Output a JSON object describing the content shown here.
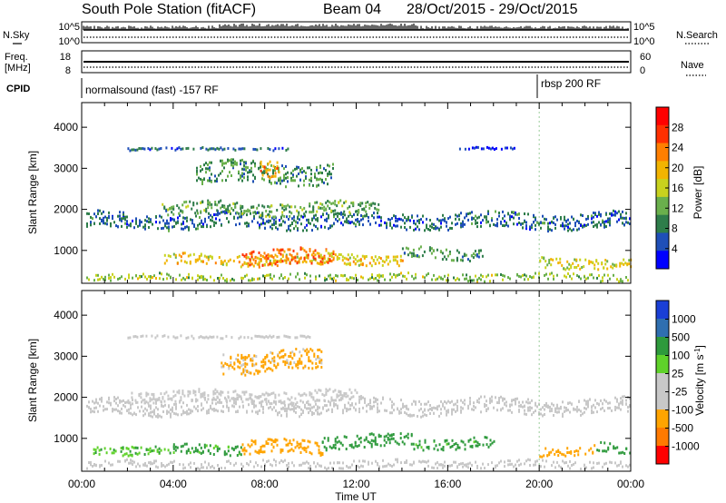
{
  "header": {
    "station": "South Pole Station (fitACF)",
    "beam": "Beam 04",
    "dates": "28/Oct/2015 - 29/Oct/2015"
  },
  "top_panels": {
    "nsky_label": "N.Sky",
    "nsky_ticks": [
      "10^5",
      "10^0"
    ],
    "nsearch_label": "N.Search",
    "nsearch_ticks": [
      "10^5",
      "10^0"
    ],
    "freq_label_line1": "Freq.",
    "freq_label_line2": "[MHz]",
    "freq_ticks": [
      "18",
      "8"
    ],
    "nave_label": "Nave",
    "nave_ticks": [
      "60",
      "0"
    ],
    "cpid_label": "CPID",
    "cpid_segments": [
      {
        "label": "normalsound (fast) -157 RF",
        "start_hr": 0,
        "end_hr": 20.0
      },
      {
        "label": "rbsp 200 RF",
        "start_hr": 20.0,
        "end_hr": 24
      }
    ]
  },
  "colors": {
    "power_scale": [
      "#0000ff",
      "#1f4fb8",
      "#2e7d4a",
      "#6ab04c",
      "#c8d21e",
      "#f2b400",
      "#ff7f00",
      "#ff3000",
      "#ff0000"
    ],
    "velocity_scale": [
      "#ff0000",
      "#ff7a00",
      "#ffa400",
      "#c8c8c8",
      "#c8c8c8",
      "#5fd22a",
      "#2e9a3c",
      "#2f6fb0",
      "#1a3fd6"
    ]
  },
  "chart_data": [
    {
      "type": "heatmap",
      "name": "power",
      "x_label": "Time UT",
      "y_label": "Slant Range [km]",
      "xlim": [
        0,
        24
      ],
      "ylim": [
        200,
        4600
      ],
      "x_ticks": [
        "00:00",
        "04:00",
        "08:00",
        "12:00",
        "16:00",
        "20:00",
        "00:00"
      ],
      "y_ticks": [
        1000,
        2000,
        3000,
        4000
      ],
      "colorbar": {
        "label": "Power [dB]",
        "ticks": [
          "4",
          "8",
          "12",
          "16",
          "20",
          "24",
          "28"
        ],
        "range": [
          0,
          32
        ]
      },
      "bands": [
        {
          "t_start": 0.2,
          "t_end": 24,
          "range_center": 1750,
          "range_width": 380,
          "value": 7
        },
        {
          "t_start": 3.5,
          "t_end": 13,
          "range_center": 2050,
          "range_width": 300,
          "value": 11
        },
        {
          "t_start": 3.6,
          "t_end": 14,
          "range_center": 800,
          "range_width": 260,
          "value": 18
        },
        {
          "t_start": 7,
          "t_end": 11,
          "range_center": 850,
          "range_width": 380,
          "value": 24
        },
        {
          "t_start": 14,
          "t_end": 17.5,
          "range_center": 950,
          "range_width": 280,
          "value": 10
        },
        {
          "t_start": 20,
          "t_end": 24,
          "range_center": 720,
          "range_width": 260,
          "value": 16
        },
        {
          "t_start": 5,
          "t_end": 11,
          "range_center": 2900,
          "range_width": 520,
          "value": 10
        },
        {
          "t_start": 7.8,
          "t_end": 8.6,
          "range_center": 3050,
          "range_width": 420,
          "value": 22
        },
        {
          "t_start": 2,
          "t_end": 9,
          "range_center": 3500,
          "range_width": 60,
          "value": 6
        },
        {
          "t_start": 16.5,
          "t_end": 19,
          "range_center": 3520,
          "range_width": 60,
          "value": 4
        },
        {
          "t_start": 0.2,
          "t_end": 24,
          "range_center": 380,
          "range_width": 160,
          "value": 14
        }
      ]
    },
    {
      "type": "heatmap",
      "name": "velocity",
      "x_label": "Time UT",
      "y_label": "Slant Range [km]",
      "xlim": [
        0,
        24
      ],
      "ylim": [
        200,
        4600
      ],
      "x_ticks": [
        "00:00",
        "04:00",
        "08:00",
        "12:00",
        "16:00",
        "20:00",
        "00:00"
      ],
      "y_ticks": [
        1000,
        2000,
        3000,
        4000
      ],
      "colorbar": {
        "label": "Velocity [m s^-1]",
        "ticks": [
          "1000",
          "500",
          "100",
          "25",
          "-25",
          "-100",
          "-500",
          "-1000"
        ]
      },
      "bands": [
        {
          "t_start": 0.2,
          "t_end": 24,
          "range_center": 1800,
          "range_width": 380,
          "value": 0
        },
        {
          "t_start": 2,
          "t_end": 12,
          "range_center": 2050,
          "range_width": 280,
          "value": 0
        },
        {
          "t_start": 0.5,
          "t_end": 4,
          "range_center": 750,
          "range_width": 220,
          "value": 80
        },
        {
          "t_start": 4,
          "t_end": 7,
          "range_center": 760,
          "range_width": 240,
          "value": 150
        },
        {
          "t_start": 7,
          "t_end": 10.5,
          "range_center": 800,
          "range_width": 330,
          "value": -300
        },
        {
          "t_start": 10.5,
          "t_end": 14.5,
          "range_center": 950,
          "range_width": 320,
          "value": 300
        },
        {
          "t_start": 14.5,
          "t_end": 18,
          "range_center": 900,
          "range_width": 260,
          "value": 200
        },
        {
          "t_start": 20,
          "t_end": 22.5,
          "range_center": 720,
          "range_width": 220,
          "value": -300
        },
        {
          "t_start": 22.5,
          "t_end": 24,
          "range_center": 780,
          "range_width": 240,
          "value": 300
        },
        {
          "t_start": 6,
          "t_end": 10.5,
          "range_center": 2900,
          "range_width": 500,
          "value": -150
        },
        {
          "t_start": 2,
          "t_end": 10,
          "range_center": 3500,
          "range_width": 60,
          "value": 0
        },
        {
          "t_start": 0.2,
          "t_end": 24,
          "range_center": 400,
          "range_width": 180,
          "value": 0
        }
      ]
    }
  ]
}
